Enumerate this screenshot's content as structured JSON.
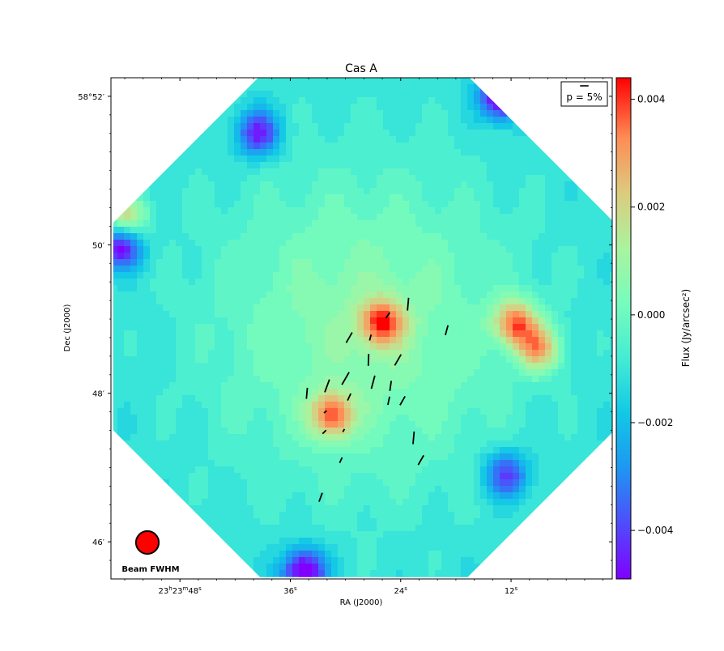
{
  "chart_data": {
    "type": "heatmap",
    "title": "Cas A",
    "xlabel": "RA (J2000)",
    "ylabel": "Dec (J2000)",
    "colorbar": {
      "label": "Flux (Jy/arcsec²)",
      "colormap": "rainbow",
      "range": [
        -0.0049,
        0.0044
      ],
      "ticks": [
        "0.004",
        "0.002",
        "0.000",
        "−0.002",
        "−0.004"
      ],
      "tick_values": [
        0.004,
        0.002,
        0.0,
        -0.002,
        -0.004
      ]
    },
    "x_ticks": {
      "labels": [
        "23h23m48s",
        "36s",
        "24s",
        "12s"
      ],
      "display": [
        {
          "h": "23",
          "hs": "h",
          "m": "23",
          "ms": "m",
          "s": "48",
          "ss": "s"
        },
        {
          "s": "36",
          "ss": "s"
        },
        {
          "s": "24",
          "ss": "s"
        },
        {
          "s": "12",
          "ss": "s"
        }
      ],
      "values_sec": [
        48,
        36,
        24,
        12
      ]
    },
    "y_ticks": {
      "labels": [
        "58°52′",
        "50′",
        "48′",
        "46′"
      ],
      "values_arcmin": [
        52,
        50,
        48,
        46
      ]
    },
    "axes_range": {
      "ra_sec": [
        55.5,
        1.0
      ],
      "dec_arcmin": [
        45.5,
        52.25
      ]
    },
    "field_center": {
      "ra_sec": 28.0,
      "dec_arcmin": 48.9
    },
    "flux_peaks": [
      {
        "ra_sec": 26.0,
        "dec_arcmin": 48.95,
        "flux": 0.0041
      },
      {
        "ra_sec": 31.5,
        "dec_arcmin": 47.7,
        "flux": 0.004
      },
      {
        "ra_sec": 11.5,
        "dec_arcmin": 48.95,
        "flux": 0.0042
      },
      {
        "ra_sec": 9.0,
        "dec_arcmin": 48.6,
        "flux": 0.0036
      },
      {
        "ra_sec": 54.0,
        "dec_arcmin": 50.35,
        "flux": 0.0037
      }
    ],
    "flux_minima": [
      {
        "ra_sec": 54.5,
        "dec_arcmin": 50.0,
        "flux": -0.0041
      },
      {
        "ra_sec": 34.5,
        "dec_arcmin": 45.6,
        "flux": -0.0043
      },
      {
        "ra_sec": 39.5,
        "dec_arcmin": 51.5,
        "flux": -0.0034
      },
      {
        "ra_sec": 13.0,
        "dec_arcmin": 52.0,
        "flux": -0.0046
      },
      {
        "ra_sec": 12.5,
        "dec_arcmin": 46.9,
        "flux": -0.003
      }
    ],
    "polarization_vectors": [
      {
        "ra_sec": 23.2,
        "dec_arcmin": 49.2,
        "p_percent": 7.5,
        "pa_deg": 5
      },
      {
        "ra_sec": 25.4,
        "dec_arcmin": 49.05,
        "p_percent": 4.0,
        "pa_deg": 35
      },
      {
        "ra_sec": 27.3,
        "dec_arcmin": 48.75,
        "p_percent": 3.5,
        "pa_deg": 15
      },
      {
        "ra_sec": 29.6,
        "dec_arcmin": 48.75,
        "p_percent": 7.0,
        "pa_deg": 30
      },
      {
        "ra_sec": 27.5,
        "dec_arcmin": 48.45,
        "p_percent": 7.0,
        "pa_deg": 2
      },
      {
        "ra_sec": 24.3,
        "dec_arcmin": 48.45,
        "p_percent": 7.5,
        "pa_deg": 30
      },
      {
        "ra_sec": 19.0,
        "dec_arcmin": 48.85,
        "p_percent": 6.0,
        "pa_deg": 15
      },
      {
        "ra_sec": 32.0,
        "dec_arcmin": 48.1,
        "p_percent": 8.0,
        "pa_deg": 20
      },
      {
        "ra_sec": 30.0,
        "dec_arcmin": 48.2,
        "p_percent": 8.5,
        "pa_deg": 30
      },
      {
        "ra_sec": 27.0,
        "dec_arcmin": 48.15,
        "p_percent": 8.0,
        "pa_deg": 15
      },
      {
        "ra_sec": 25.1,
        "dec_arcmin": 48.1,
        "p_percent": 6.0,
        "pa_deg": 8
      },
      {
        "ra_sec": 34.2,
        "dec_arcmin": 48.0,
        "p_percent": 6.5,
        "pa_deg": 5
      },
      {
        "ra_sec": 29.6,
        "dec_arcmin": 47.95,
        "p_percent": 4.5,
        "pa_deg": 25
      },
      {
        "ra_sec": 25.3,
        "dec_arcmin": 47.9,
        "p_percent": 5.0,
        "pa_deg": 12
      },
      {
        "ra_sec": 23.8,
        "dec_arcmin": 47.9,
        "p_percent": 6.0,
        "pa_deg": 30
      },
      {
        "ra_sec": 32.2,
        "dec_arcmin": 47.75,
        "p_percent": 2.0,
        "pa_deg": 50
      },
      {
        "ra_sec": 32.3,
        "dec_arcmin": 47.48,
        "p_percent": 3.0,
        "pa_deg": 45
      },
      {
        "ra_sec": 30.2,
        "dec_arcmin": 47.5,
        "p_percent": 2.0,
        "pa_deg": 30
      },
      {
        "ra_sec": 22.6,
        "dec_arcmin": 47.4,
        "p_percent": 7.5,
        "pa_deg": 5
      },
      {
        "ra_sec": 21.8,
        "dec_arcmin": 47.1,
        "p_percent": 6.5,
        "pa_deg": 30
      },
      {
        "ra_sec": 30.5,
        "dec_arcmin": 47.1,
        "p_percent": 3.5,
        "pa_deg": 25
      },
      {
        "ra_sec": 32.7,
        "dec_arcmin": 46.6,
        "p_percent": 5.5,
        "pa_deg": 20
      }
    ],
    "vector_legend": {
      "label": "p = 5%",
      "p_percent": 5
    },
    "beam": {
      "label": "Beam FWHM",
      "fwhm_arcsec": 18.4,
      "color": "#ff0000"
    }
  }
}
